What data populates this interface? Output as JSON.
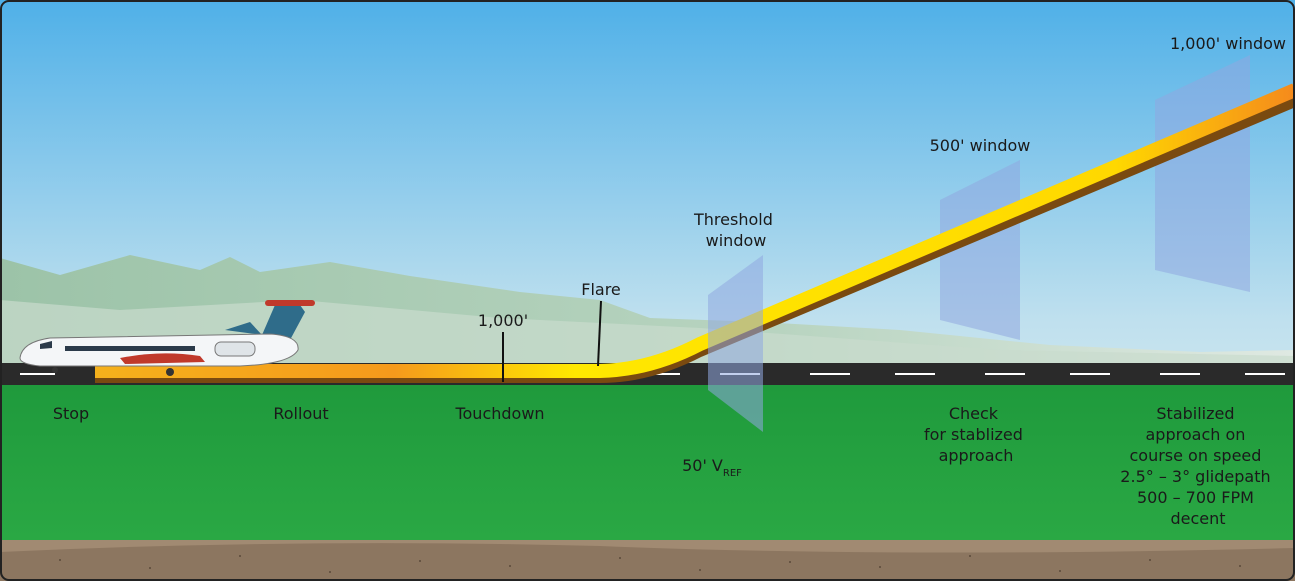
{
  "labels": {
    "stop": "Stop",
    "rollout": "Rollout",
    "touchdown": "Touchdown",
    "flare": "Flare",
    "touchdown_distance": "1,000'",
    "threshold_window": [
      "Threshold",
      "window"
    ],
    "window_500": "500' window",
    "window_1000": "1,000' window",
    "vref": {
      "main": "50' V",
      "sub": "REF"
    },
    "check": [
      "Check",
      "for stablized",
      "approach"
    ],
    "stabilized": [
      "Stabilized",
      "approach on",
      "course on speed",
      "2.5° – 3° glidepath",
      "500 – 700 FPM",
      "decent"
    ]
  }
}
